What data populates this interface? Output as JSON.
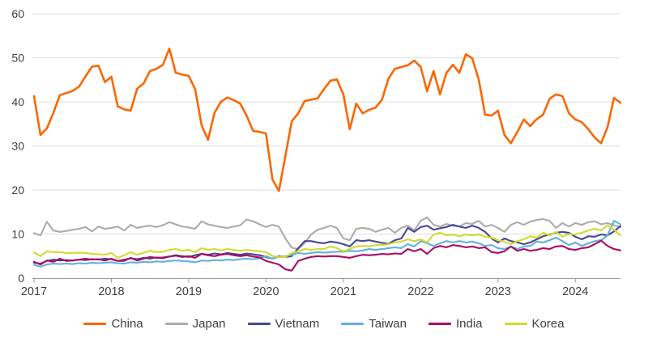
{
  "chart_data": {
    "type": "line",
    "title": "",
    "x_axis": {
      "frequency": "monthly",
      "start": "2017-01",
      "end": "2024-08",
      "tick_labels": [
        "2017",
        "2018",
        "2019",
        "2020",
        "2021",
        "2022",
        "2023",
        "2024"
      ],
      "tick_month_indices": [
        0,
        12,
        24,
        36,
        48,
        60,
        72,
        84
      ]
    },
    "y_axis": {
      "min": 0,
      "max": 60,
      "ticks": [
        0,
        10,
        20,
        30,
        40,
        50,
        60
      ]
    },
    "grid": "horizontal",
    "legend_position": "bottom",
    "colors": {
      "grid": "#dcdcdc",
      "axis": "#9c9c9c",
      "tick_text": "#3f3f3f"
    },
    "series": [
      {
        "name": "China",
        "color": "#f96702",
        "values": [
          41.3,
          32.5,
          34.0,
          37.5,
          41.5,
          42.0,
          42.5,
          43.5,
          45.8,
          48.0,
          48.2,
          44.5,
          45.7,
          39.0,
          38.3,
          38.0,
          43.0,
          44.2,
          47.0,
          47.5,
          48.4,
          52.1,
          46.6,
          46.2,
          45.9,
          42.9,
          34.7,
          31.4,
          37.5,
          40.0,
          41.0,
          40.4,
          39.6,
          36.9,
          33.4,
          33.2,
          32.8,
          22.4,
          19.8,
          27.7,
          35.6,
          37.4,
          40.2,
          40.5,
          40.8,
          42.9,
          44.8,
          45.1,
          41.7,
          33.8,
          39.6,
          37.4,
          38.2,
          38.7,
          40.5,
          45.3,
          47.5,
          47.9,
          48.3,
          49.4,
          47.9,
          42.4,
          47.0,
          41.7,
          46.6,
          48.4,
          46.6,
          50.8,
          49.9,
          45.1,
          37.1,
          36.9,
          38.0,
          32.5,
          30.6,
          33.2,
          36.0,
          34.5,
          36.1,
          37.1,
          40.7,
          41.7,
          41.3,
          37.4,
          36.0,
          35.4,
          33.8,
          31.9,
          30.6,
          34.3,
          40.9,
          39.8
        ]
      },
      {
        "name": "Japan",
        "color": "#ababab",
        "values": [
          10.2,
          9.7,
          12.8,
          10.8,
          10.5,
          10.7,
          11.0,
          11.2,
          11.6,
          10.6,
          11.7,
          11.2,
          11.4,
          11.7,
          10.8,
          12.1,
          11.4,
          11.7,
          11.9,
          11.6,
          12.0,
          12.7,
          12.2,
          11.7,
          11.5,
          11.2,
          12.9,
          12.2,
          11.9,
          11.6,
          11.4,
          11.7,
          12.0,
          13.3,
          12.9,
          12.2,
          11.6,
          12.1,
          11.7,
          9.0,
          6.9,
          6.6,
          8.0,
          9.9,
          11.0,
          11.4,
          11.9,
          11.4,
          9.0,
          8.6,
          11.2,
          11.4,
          11.2,
          10.5,
          11.0,
          11.4,
          10.3,
          11.4,
          11.9,
          10.8,
          13.0,
          13.8,
          12.1,
          11.7,
          12.3,
          11.9,
          11.7,
          12.5,
          12.3,
          13.0,
          11.7,
          12.1,
          11.4,
          10.5,
          12.1,
          12.7,
          12.1,
          12.8,
          13.2,
          13.4,
          13.0,
          11.4,
          12.5,
          11.7,
          12.5,
          12.1,
          12.7,
          12.9,
          12.2,
          12.5,
          12.0,
          11.6
        ]
      },
      {
        "name": "Vietnam",
        "color": "#474791",
        "values": [
          3.5,
          3.3,
          3.9,
          4.2,
          4.0,
          4.1,
          4.0,
          4.2,
          4.1,
          4.3,
          4.2,
          4.4,
          4.3,
          3.9,
          4.2,
          4.5,
          4.3,
          4.6,
          4.4,
          4.7,
          4.5,
          4.9,
          5.2,
          5.0,
          4.8,
          5.2,
          5.5,
          5.3,
          5.6,
          5.4,
          5.7,
          5.5,
          5.3,
          5.6,
          5.4,
          5.2,
          4.8,
          4.4,
          5.0,
          4.8,
          5.0,
          6.8,
          8.4,
          8.4,
          8.1,
          7.9,
          8.3,
          8.1,
          7.7,
          7.2,
          8.6,
          8.4,
          8.6,
          8.3,
          8.0,
          7.8,
          8.6,
          9.0,
          11.4,
          10.5,
          11.6,
          11.9,
          11.0,
          11.3,
          11.6,
          12.1,
          11.7,
          11.4,
          11.9,
          11.4,
          10.5,
          9.0,
          8.1,
          9.0,
          8.4,
          8.1,
          7.7,
          8.1,
          8.8,
          9.5,
          9.9,
          10.3,
          10.5,
          10.3,
          9.4,
          8.8,
          9.5,
          9.4,
          9.9,
          9.7,
          10.6,
          11.8
        ]
      },
      {
        "name": "Taiwan",
        "color": "#62b1e0",
        "values": [
          3.0,
          2.6,
          3.1,
          3.3,
          3.2,
          3.3,
          3.2,
          3.4,
          3.3,
          3.5,
          3.4,
          3.5,
          3.6,
          3.4,
          3.3,
          3.6,
          3.5,
          3.7,
          3.6,
          3.8,
          3.7,
          3.9,
          4.0,
          3.9,
          3.8,
          3.6,
          4.0,
          3.9,
          4.1,
          4.0,
          4.2,
          4.1,
          4.3,
          4.4,
          4.3,
          4.5,
          5.0,
          4.4,
          4.8,
          5.0,
          5.3,
          5.7,
          5.5,
          5.7,
          5.9,
          5.8,
          5.9,
          6.0,
          6.0,
          6.2,
          6.1,
          6.3,
          6.6,
          6.4,
          6.6,
          6.8,
          7.0,
          6.8,
          7.7,
          7.2,
          8.4,
          7.9,
          7.3,
          7.9,
          8.4,
          8.1,
          8.4,
          8.1,
          8.3,
          7.9,
          7.3,
          7.5,
          6.8,
          6.6,
          7.2,
          6.6,
          7.2,
          7.3,
          8.3,
          8.1,
          8.6,
          9.2,
          8.4,
          7.5,
          8.1,
          7.3,
          7.9,
          8.4,
          8.6,
          9.7,
          13.0,
          12.2
        ]
      },
      {
        "name": "India",
        "color": "#ac0a62",
        "values": [
          3.7,
          3.1,
          4.0,
          3.7,
          4.4,
          3.9,
          4.0,
          4.2,
          4.4,
          4.2,
          4.3,
          4.0,
          4.4,
          3.9,
          3.9,
          4.6,
          4.0,
          4.4,
          4.8,
          4.6,
          4.7,
          4.9,
          5.1,
          4.8,
          5.0,
          4.6,
          5.5,
          5.2,
          5.0,
          5.3,
          5.5,
          5.2,
          5.0,
          5.2,
          4.9,
          4.7,
          3.9,
          3.5,
          3.1,
          2.0,
          1.7,
          3.9,
          4.4,
          4.8,
          5.0,
          4.9,
          5.0,
          5.0,
          4.8,
          4.6,
          5.0,
          5.3,
          5.2,
          5.3,
          5.5,
          5.4,
          5.6,
          5.5,
          6.6,
          6.1,
          6.6,
          5.5,
          6.8,
          7.3,
          7.0,
          7.5,
          7.3,
          7.0,
          7.2,
          6.8,
          7.0,
          5.9,
          5.7,
          6.1,
          7.2,
          6.2,
          6.6,
          6.2,
          6.4,
          6.8,
          6.6,
          7.2,
          7.3,
          6.6,
          6.4,
          6.8,
          7.0,
          7.7,
          8.5,
          7.3,
          6.6,
          6.3
        ]
      },
      {
        "name": "Korea",
        "color": "#d2db2d",
        "values": [
          5.8,
          5.0,
          6.1,
          5.9,
          5.9,
          5.7,
          5.7,
          5.8,
          5.7,
          5.5,
          5.4,
          5.3,
          5.7,
          4.6,
          5.2,
          5.9,
          5.3,
          5.7,
          6.2,
          5.9,
          6.0,
          6.4,
          6.6,
          6.2,
          6.4,
          5.9,
          6.8,
          6.4,
          6.6,
          6.3,
          6.6,
          6.4,
          6.2,
          6.4,
          6.2,
          6.1,
          5.9,
          5.0,
          4.8,
          4.8,
          5.7,
          6.1,
          6.6,
          6.4,
          6.6,
          6.6,
          7.2,
          6.8,
          6.1,
          6.6,
          7.2,
          7.3,
          7.2,
          7.5,
          7.5,
          7.7,
          8.1,
          8.3,
          8.8,
          8.4,
          8.8,
          8.1,
          9.9,
          10.3,
          9.7,
          9.9,
          9.5,
          9.9,
          9.7,
          9.9,
          9.4,
          9.2,
          8.6,
          8.3,
          7.7,
          8.4,
          8.8,
          9.5,
          9.2,
          10.3,
          9.7,
          10.5,
          9.4,
          10.0,
          9.9,
          10.3,
          10.8,
          11.2,
          10.8,
          12.0,
          11.0,
          9.7
        ]
      }
    ]
  }
}
